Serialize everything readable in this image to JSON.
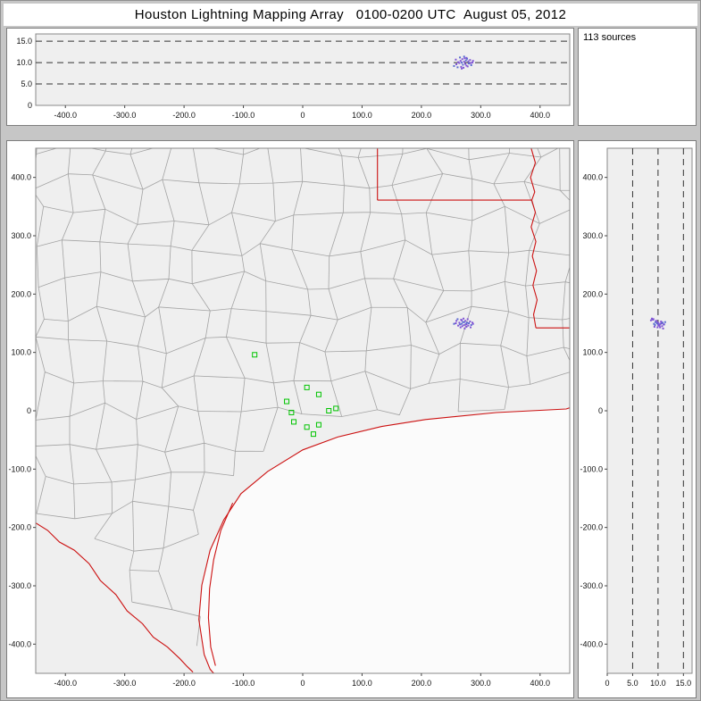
{
  "title": "Houston Lightning Mapping Array   0100-0200 UTC  August 05, 2012",
  "source_count_label": "113 sources",
  "colors": {
    "figure_bg": "#c6c6c6",
    "panel_bg": "#ffffff",
    "plot_bg": "#efefef",
    "sea": "#fbfbfb",
    "county_line": "#a3a3a3",
    "border_red": "#cc1111",
    "station_green": "#00c400",
    "source_purple": "#8055d5",
    "source_blue": "#5a6ad0",
    "grid_line": "#333333",
    "text": "#111111"
  },
  "chart_data": [
    {
      "type": "scatter",
      "name": "altitude-vs-east-west",
      "xlim": [
        -450,
        450
      ],
      "ylim": [
        0,
        16.7
      ],
      "x_tick_labels": [
        "-400.0",
        "-300.0",
        "-200.0",
        "-100.0",
        "0",
        "100.0",
        "200.0",
        "300.0",
        "400.0"
      ],
      "y_tick_labels": [
        "15.0",
        "10.0",
        "5.0",
        "0"
      ],
      "y_gridlines": [
        5,
        10,
        15
      ],
      "note": "points are (east_west_km, altitude_km) of the shared lightning sources cluster near x=270 km, alt=10 km"
    },
    {
      "type": "scatter",
      "name": "plan-view-map",
      "xlim": [
        -450,
        450
      ],
      "ylim": [
        -450,
        450
      ],
      "x_tick_labels": [
        "-400.0",
        "-300.0",
        "-200.0",
        "-100.0",
        "0",
        "100.0",
        "200.0",
        "300.0",
        "400.0"
      ],
      "y_tick_labels": [
        "400.0",
        "300.0",
        "200.0",
        "100.0",
        "0",
        "-100.0",
        "-200.0",
        "-300.0",
        "-400.0"
      ],
      "grid": false,
      "map_layers": [
        "county-boundaries-gray",
        "state-borders-and-coastline-red",
        "lma-stations-green-squares",
        "lightning-sources-purple"
      ],
      "stations": [
        [
          -81,
          96
        ],
        [
          7,
          40
        ],
        [
          27,
          28
        ],
        [
          -27,
          16
        ],
        [
          -19,
          -3
        ],
        [
          -15,
          -19
        ],
        [
          7,
          -28
        ],
        [
          27,
          -24
        ],
        [
          44,
          0
        ],
        [
          18,
          -40
        ],
        [
          56,
          4
        ]
      ],
      "sources": [
        [
          255,
          149,
          9.2
        ],
        [
          258,
          150,
          10.7
        ],
        [
          259,
          154,
          9.6
        ],
        [
          261,
          157,
          8.9
        ],
        [
          262,
          146,
          10.1
        ],
        [
          264,
          151,
          9.9
        ],
        [
          265,
          148,
          11.2
        ],
        [
          266,
          143,
          10.4
        ],
        [
          267,
          156,
          9.0
        ],
        [
          268,
          149,
          10.0
        ],
        [
          268,
          155,
          8.6
        ],
        [
          269,
          145,
          10.8
        ],
        [
          270,
          152,
          9.5
        ],
        [
          271,
          158,
          8.8
        ],
        [
          272,
          147,
          10.2
        ],
        [
          272,
          152,
          11.4
        ],
        [
          273,
          141,
          11.0
        ],
        [
          274,
          154,
          9.7
        ],
        [
          275,
          149,
          10.5
        ],
        [
          276,
          144,
          9.3
        ],
        [
          276,
          148,
          11.1
        ],
        [
          277,
          151,
          10.9
        ],
        [
          278,
          157,
          9.1
        ],
        [
          279,
          146,
          10.3
        ],
        [
          280,
          150,
          9.8
        ],
        [
          282,
          153,
          10.6
        ],
        [
          283,
          143,
          9.9
        ],
        [
          284,
          147,
          9.4
        ],
        [
          286,
          151,
          10.0
        ],
        [
          287,
          149,
          10.4
        ]
      ],
      "sources_total": 113
    },
    {
      "type": "scatter",
      "name": "altitude-vs-north-south",
      "xlim": [
        0,
        16.7
      ],
      "ylim": [
        -450,
        450
      ],
      "x_tick_labels": [
        "0",
        "5.0",
        "10.0",
        "15.0"
      ],
      "y_tick_labels": [
        "400.0",
        "300.0",
        "200.0",
        "100.0",
        "0",
        "-100.0",
        "-200.0",
        "-300.0",
        "-400.0"
      ],
      "x_gridlines": [
        5,
        10,
        15
      ],
      "note": "points are (altitude_km, north_south_km) of the shared lightning sources cluster near y=150 km, alt=10 km"
    }
  ]
}
